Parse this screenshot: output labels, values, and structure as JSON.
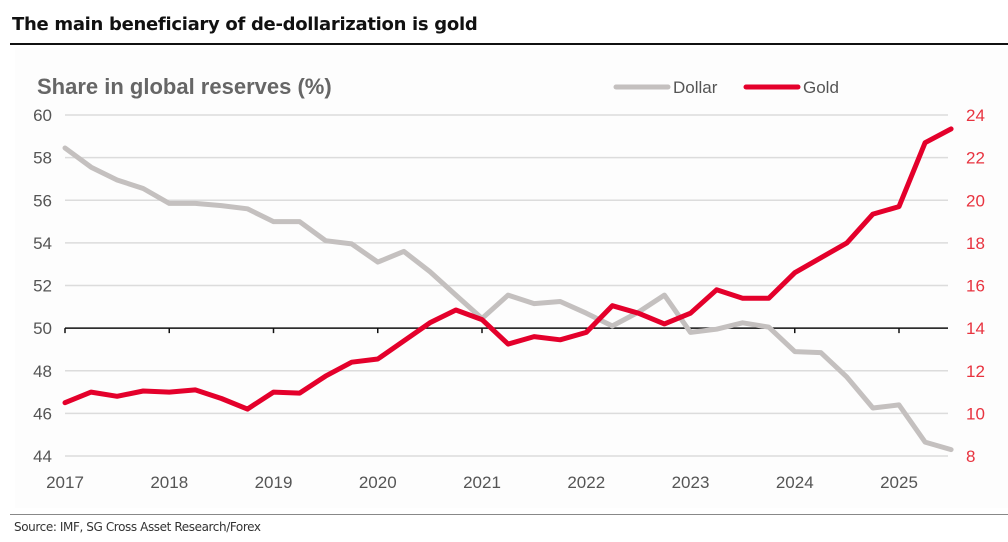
{
  "title": "The main beneficiary of de-dollarization is gold",
  "source": "Source: IMF, SG Cross Asset Research/Forex",
  "chart_data": {
    "type": "line",
    "title": "The main beneficiary of de-dollarization is gold",
    "ylabel": "Share in global reserves (%)",
    "xlabel": "",
    "x_ticks": [
      "2017",
      "2018",
      "2019",
      "2020",
      "2021",
      "2022",
      "2023",
      "2024",
      "2025"
    ],
    "x_range": [
      2017,
      2025.5
    ],
    "y_left": {
      "range": [
        44,
        60
      ],
      "ticks": [
        44,
        46,
        48,
        50,
        52,
        54,
        56,
        58,
        60
      ],
      "reference_line": 50
    },
    "y_right": {
      "range": [
        8,
        24
      ],
      "ticks": [
        8,
        10,
        12,
        14,
        16,
        18,
        20,
        22,
        24
      ],
      "color": "#e8333f"
    },
    "grid": true,
    "legend": "top-right",
    "x": [
      2017.0,
      2017.25,
      2017.5,
      2017.75,
      2018.0,
      2018.25,
      2018.5,
      2018.75,
      2019.0,
      2019.25,
      2019.5,
      2019.75,
      2020.0,
      2020.25,
      2020.5,
      2020.75,
      2021.0,
      2021.25,
      2021.5,
      2021.75,
      2022.0,
      2022.25,
      2022.5,
      2022.75,
      2023.0,
      2023.25,
      2023.5,
      2023.75,
      2024.0,
      2024.25,
      2024.5,
      2024.75,
      2025.0,
      2025.25,
      2025.5
    ],
    "series": [
      {
        "name": "Dollar",
        "axis": "left",
        "color": "#c4c0bf",
        "values": [
          58.45,
          57.55,
          56.95,
          56.55,
          55.85,
          55.85,
          55.75,
          55.6,
          55.0,
          55.0,
          54.1,
          53.95,
          53.1,
          53.6,
          52.65,
          51.55,
          50.45,
          51.55,
          51.15,
          51.25,
          50.7,
          50.1,
          50.75,
          51.55,
          49.8,
          49.95,
          50.25,
          50.05,
          48.9,
          48.85,
          47.7,
          46.25,
          46.4,
          44.65,
          44.3
        ]
      },
      {
        "name": "Gold",
        "axis": "right",
        "color": "#e4002b",
        "values": [
          10.5,
          11.0,
          10.8,
          11.05,
          11.0,
          11.1,
          10.7,
          10.2,
          11.0,
          10.95,
          11.75,
          12.4,
          12.55,
          13.4,
          14.25,
          14.85,
          14.4,
          13.25,
          13.6,
          13.45,
          13.8,
          15.05,
          14.7,
          14.2,
          14.7,
          15.8,
          15.4,
          15.4,
          16.6,
          17.3,
          18.0,
          19.35,
          19.7,
          22.7,
          23.35
        ]
      }
    ]
  }
}
